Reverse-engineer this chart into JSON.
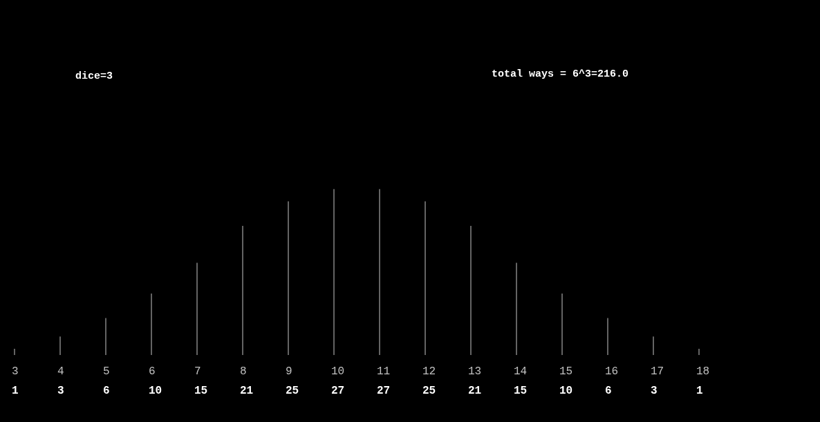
{
  "chart_data": {
    "type": "bar",
    "title": "dice=3",
    "annotations": [
      "total ways = 6^3=216.0"
    ],
    "categories": [
      "3",
      "4",
      "5",
      "6",
      "7",
      "8",
      "9",
      "10",
      "11",
      "12",
      "13",
      "14",
      "15",
      "16",
      "17",
      "18"
    ],
    "values": [
      1,
      3,
      6,
      10,
      15,
      21,
      25,
      27,
      27,
      25,
      21,
      15,
      10,
      6,
      3,
      1
    ],
    "color": "#c8c8c8",
    "data_labels": true,
    "grid": false
  }
}
